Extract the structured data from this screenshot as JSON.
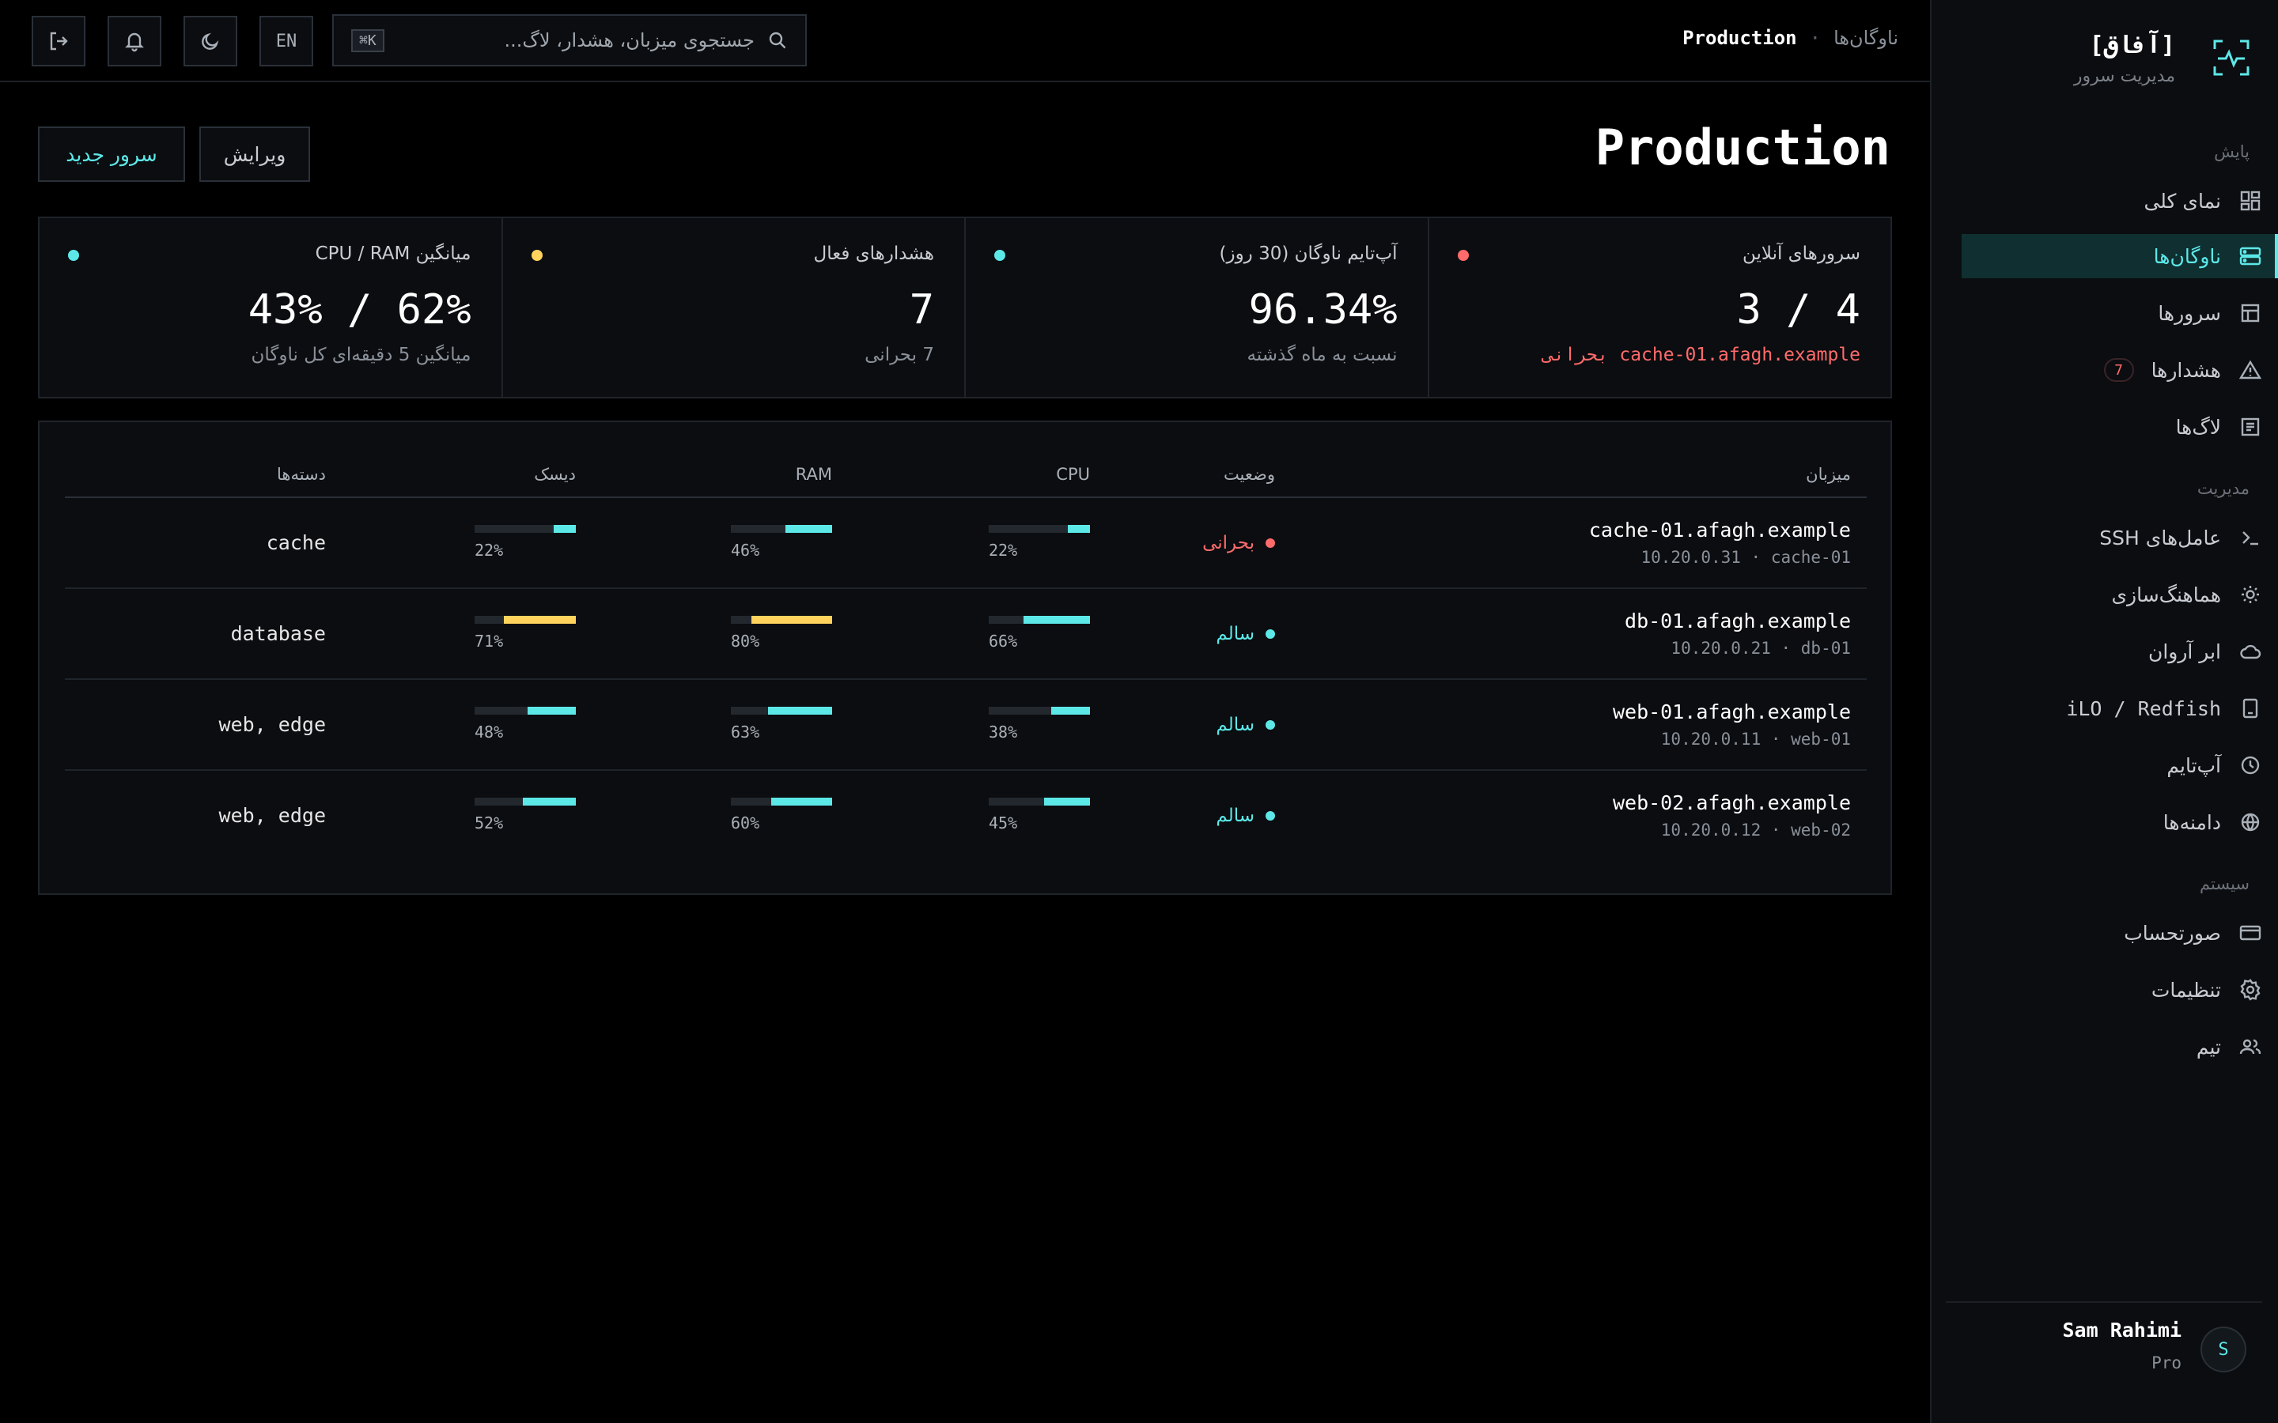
{
  "brand": {
    "name": "[آفاق]",
    "subtitle": "مدیریت سرور"
  },
  "sidebar": {
    "sections": [
      {
        "label": "پایش",
        "items": [
          {
            "label": "نمای کلی",
            "icon": "grid-icon",
            "active": false
          },
          {
            "label": "ناوگان‌ها",
            "icon": "server-stack-icon",
            "active": true
          },
          {
            "label": "سرورها",
            "icon": "table-icon",
            "active": false
          },
          {
            "label": "هشدارها",
            "icon": "warning-triangle-icon",
            "active": false,
            "badge": "7"
          },
          {
            "label": "لاگ‌ها",
            "icon": "document-lines-icon",
            "active": false
          }
        ]
      },
      {
        "label": "مدیریت",
        "items": [
          {
            "label": "عامل‌های SSH",
            "icon": "terminal-prompt-icon"
          },
          {
            "label": "هماهنگ‌سازی",
            "icon": "sun-sync-icon"
          },
          {
            "label": "ابر آروان",
            "icon": "cloud-icon"
          },
          {
            "label": "iLO / Redfish",
            "icon": "hard-drive-icon"
          },
          {
            "label": "آپ‌تایم",
            "icon": "clock-icon"
          },
          {
            "label": "دامنه‌ها",
            "icon": "globe-icon"
          }
        ]
      },
      {
        "label": "سیستم",
        "items": [
          {
            "label": "صورتحساب",
            "icon": "credit-card-icon"
          },
          {
            "label": "تنظیمات",
            "icon": "gear-icon"
          },
          {
            "label": "تیم",
            "icon": "users-icon"
          }
        ]
      }
    ]
  },
  "user": {
    "initial": "S",
    "name": "Sam Rahimi",
    "plan": "Pro"
  },
  "topbar": {
    "breadcrumb": {
      "parent": "ناوگان‌ها",
      "separator": "·",
      "current": "Production"
    },
    "search": {
      "placeholder": "جستجوی میزبان، هشدار، لاگ...",
      "shortcut": "⌘K"
    },
    "lang": "EN"
  },
  "header": {
    "title": "Production",
    "new_server": "سرور جدید",
    "edit": "ویرایش"
  },
  "stats": [
    {
      "label": "سرورهای آنلاین",
      "value": "3 / 4",
      "sub": "cache-01.afagh.example بحرانی",
      "sub_critical": true,
      "dot": "#ff6b6b"
    },
    {
      "label": "آپ‌تایم ناوگان (30 روز)",
      "value": "96.34%",
      "sub": "نسبت به ماه گذشته",
      "dot": "#5de8e8"
    },
    {
      "label": "هشدارهای فعال",
      "value": "7",
      "sub": "7 بحرانی",
      "dot": "#ffd35c"
    },
    {
      "label": "میانگین CPU / RAM",
      "value": "43% / 62%",
      "sub": "میانگین 5 دقیقه‌ای کل ناوگان",
      "dot": "#5de8e8"
    }
  ],
  "table": {
    "headers": {
      "host": "میزبان",
      "status": "وضعیت",
      "cpu": "CPU",
      "ram": "RAM",
      "disk": "دیسک",
      "groups": "دسته‌ها"
    },
    "rows": [
      {
        "host": "cache-01.afagh.example",
        "meta": "10.20.0.31 · cache-01",
        "status": "بحرانی",
        "status_color": "#ff6b6b",
        "cpu": 22,
        "ram": 46,
        "disk": 22,
        "groups": "cache"
      },
      {
        "host": "db-01.afagh.example",
        "meta": "10.20.0.21 · db-01",
        "status": "سالم",
        "status_color": "#5de8e8",
        "cpu": 66,
        "ram": 80,
        "disk": 71,
        "groups": "database"
      },
      {
        "host": "web-01.afagh.example",
        "meta": "10.20.0.11 · web-01",
        "status": "سالم",
        "status_color": "#5de8e8",
        "cpu": 38,
        "ram": 63,
        "disk": 48,
        "groups": "web, edge"
      },
      {
        "host": "web-02.afagh.example",
        "meta": "10.20.0.12 · web-02",
        "status": "سالم",
        "status_color": "#5de8e8",
        "cpu": 45,
        "ram": 60,
        "disk": 52,
        "groups": "web, edge"
      }
    ]
  },
  "colors": {
    "accent": "#5de8e8",
    "critical": "#ff6b6b",
    "warning": "#ffd35c"
  }
}
